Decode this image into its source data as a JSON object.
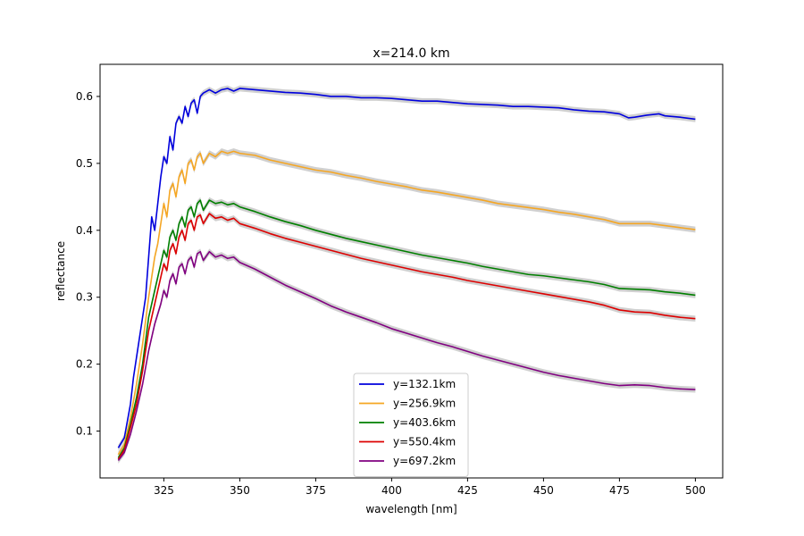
{
  "chart_data": {
    "type": "line",
    "title": "x=214.0 km",
    "xlabel": "wavelength [nm]",
    "ylabel": "reflectance",
    "xlim": [
      304,
      509
    ],
    "ylim": [
      0.03,
      0.648
    ],
    "xticks": [
      325,
      350,
      375,
      400,
      425,
      450,
      475,
      500
    ],
    "yticks": [
      0.1,
      0.2,
      0.3,
      0.4,
      0.5,
      0.6
    ],
    "legend_position": "lower-center",
    "grid": false,
    "uncertainty_band_color": "#c8c8c8",
    "series": [
      {
        "name": "y=132.1km",
        "color": "#0000dd",
        "points": [
          [
            310,
            0.075
          ],
          [
            312,
            0.09
          ],
          [
            314,
            0.14
          ],
          [
            315,
            0.18
          ],
          [
            316,
            0.21
          ],
          [
            318,
            0.27
          ],
          [
            319,
            0.3
          ],
          [
            320,
            0.36
          ],
          [
            321,
            0.42
          ],
          [
            322,
            0.4
          ],
          [
            323,
            0.44
          ],
          [
            324,
            0.48
          ],
          [
            325,
            0.51
          ],
          [
            326,
            0.5
          ],
          [
            327,
            0.54
          ],
          [
            328,
            0.52
          ],
          [
            329,
            0.56
          ],
          [
            330,
            0.57
          ],
          [
            331,
            0.56
          ],
          [
            332,
            0.585
          ],
          [
            333,
            0.57
          ],
          [
            334,
            0.59
          ],
          [
            335,
            0.595
          ],
          [
            336,
            0.575
          ],
          [
            337,
            0.6
          ],
          [
            338,
            0.605
          ],
          [
            340,
            0.61
          ],
          [
            342,
            0.605
          ],
          [
            344,
            0.61
          ],
          [
            346,
            0.612
          ],
          [
            348,
            0.608
          ],
          [
            350,
            0.612
          ],
          [
            355,
            0.61
          ],
          [
            360,
            0.608
          ],
          [
            365,
            0.606
          ],
          [
            370,
            0.605
          ],
          [
            375,
            0.603
          ],
          [
            380,
            0.6
          ],
          [
            385,
            0.6
          ],
          [
            390,
            0.598
          ],
          [
            395,
            0.598
          ],
          [
            400,
            0.597
          ],
          [
            405,
            0.595
          ],
          [
            410,
            0.593
          ],
          [
            415,
            0.593
          ],
          [
            420,
            0.591
          ],
          [
            425,
            0.589
          ],
          [
            430,
            0.588
          ],
          [
            435,
            0.587
          ],
          [
            440,
            0.585
          ],
          [
            445,
            0.585
          ],
          [
            450,
            0.584
          ],
          [
            455,
            0.583
          ],
          [
            460,
            0.58
          ],
          [
            465,
            0.578
          ],
          [
            470,
            0.577
          ],
          [
            475,
            0.574
          ],
          [
            478,
            0.568
          ],
          [
            480,
            0.569
          ],
          [
            484,
            0.572
          ],
          [
            488,
            0.574
          ],
          [
            490,
            0.571
          ],
          [
            495,
            0.569
          ],
          [
            500,
            0.566
          ]
        ]
      },
      {
        "name": "y=256.9km",
        "color": "#f5a623",
        "points": [
          [
            310,
            0.065
          ],
          [
            312,
            0.08
          ],
          [
            314,
            0.12
          ],
          [
            316,
            0.17
          ],
          [
            318,
            0.23
          ],
          [
            320,
            0.3
          ],
          [
            321,
            0.33
          ],
          [
            322,
            0.36
          ],
          [
            323,
            0.38
          ],
          [
            324,
            0.41
          ],
          [
            325,
            0.44
          ],
          [
            326,
            0.42
          ],
          [
            327,
            0.46
          ],
          [
            328,
            0.47
          ],
          [
            329,
            0.45
          ],
          [
            330,
            0.48
          ],
          [
            331,
            0.49
          ],
          [
            332,
            0.47
          ],
          [
            333,
            0.5
          ],
          [
            334,
            0.505
          ],
          [
            335,
            0.49
          ],
          [
            336,
            0.51
          ],
          [
            337,
            0.515
          ],
          [
            338,
            0.5
          ],
          [
            340,
            0.515
          ],
          [
            342,
            0.51
          ],
          [
            344,
            0.518
          ],
          [
            346,
            0.515
          ],
          [
            348,
            0.518
          ],
          [
            350,
            0.515
          ],
          [
            355,
            0.512
          ],
          [
            360,
            0.505
          ],
          [
            365,
            0.5
          ],
          [
            370,
            0.495
          ],
          [
            375,
            0.49
          ],
          [
            380,
            0.487
          ],
          [
            385,
            0.482
          ],
          [
            390,
            0.478
          ],
          [
            395,
            0.473
          ],
          [
            400,
            0.469
          ],
          [
            405,
            0.465
          ],
          [
            410,
            0.46
          ],
          [
            415,
            0.457
          ],
          [
            420,
            0.453
          ],
          [
            425,
            0.449
          ],
          [
            430,
            0.445
          ],
          [
            435,
            0.44
          ],
          [
            440,
            0.437
          ],
          [
            445,
            0.434
          ],
          [
            450,
            0.431
          ],
          [
            455,
            0.427
          ],
          [
            460,
            0.424
          ],
          [
            465,
            0.42
          ],
          [
            470,
            0.416
          ],
          [
            475,
            0.41
          ],
          [
            480,
            0.41
          ],
          [
            485,
            0.41
          ],
          [
            490,
            0.407
          ],
          [
            495,
            0.404
          ],
          [
            500,
            0.401
          ]
        ]
      },
      {
        "name": "y=403.6km",
        "color": "#007f00",
        "points": [
          [
            310,
            0.06
          ],
          [
            312,
            0.075
          ],
          [
            314,
            0.11
          ],
          [
            316,
            0.15
          ],
          [
            318,
            0.2
          ],
          [
            320,
            0.27
          ],
          [
            321,
            0.29
          ],
          [
            322,
            0.31
          ],
          [
            323,
            0.33
          ],
          [
            324,
            0.35
          ],
          [
            325,
            0.37
          ],
          [
            326,
            0.36
          ],
          [
            327,
            0.39
          ],
          [
            328,
            0.4
          ],
          [
            329,
            0.385
          ],
          [
            330,
            0.41
          ],
          [
            331,
            0.42
          ],
          [
            332,
            0.405
          ],
          [
            333,
            0.43
          ],
          [
            334,
            0.435
          ],
          [
            335,
            0.42
          ],
          [
            336,
            0.44
          ],
          [
            337,
            0.445
          ],
          [
            338,
            0.43
          ],
          [
            340,
            0.445
          ],
          [
            342,
            0.44
          ],
          [
            344,
            0.442
          ],
          [
            346,
            0.438
          ],
          [
            348,
            0.44
          ],
          [
            350,
            0.435
          ],
          [
            355,
            0.428
          ],
          [
            360,
            0.42
          ],
          [
            365,
            0.413
          ],
          [
            370,
            0.407
          ],
          [
            375,
            0.4
          ],
          [
            380,
            0.394
          ],
          [
            385,
            0.388
          ],
          [
            390,
            0.383
          ],
          [
            395,
            0.378
          ],
          [
            400,
            0.373
          ],
          [
            405,
            0.368
          ],
          [
            410,
            0.363
          ],
          [
            415,
            0.359
          ],
          [
            420,
            0.355
          ],
          [
            425,
            0.351
          ],
          [
            430,
            0.346
          ],
          [
            435,
            0.342
          ],
          [
            440,
            0.338
          ],
          [
            445,
            0.334
          ],
          [
            450,
            0.332
          ],
          [
            455,
            0.329
          ],
          [
            460,
            0.326
          ],
          [
            465,
            0.323
          ],
          [
            470,
            0.319
          ],
          [
            475,
            0.313
          ],
          [
            480,
            0.312
          ],
          [
            485,
            0.311
          ],
          [
            490,
            0.308
          ],
          [
            495,
            0.306
          ],
          [
            500,
            0.303
          ]
        ]
      },
      {
        "name": "y=550.4km",
        "color": "#dd0000",
        "points": [
          [
            310,
            0.058
          ],
          [
            312,
            0.072
          ],
          [
            314,
            0.105
          ],
          [
            316,
            0.14
          ],
          [
            318,
            0.19
          ],
          [
            320,
            0.25
          ],
          [
            321,
            0.27
          ],
          [
            322,
            0.29
          ],
          [
            323,
            0.31
          ],
          [
            324,
            0.33
          ],
          [
            325,
            0.35
          ],
          [
            326,
            0.34
          ],
          [
            327,
            0.37
          ],
          [
            328,
            0.38
          ],
          [
            329,
            0.365
          ],
          [
            330,
            0.39
          ],
          [
            331,
            0.4
          ],
          [
            332,
            0.385
          ],
          [
            333,
            0.41
          ],
          [
            334,
            0.415
          ],
          [
            335,
            0.4
          ],
          [
            336,
            0.42
          ],
          [
            337,
            0.423
          ],
          [
            338,
            0.41
          ],
          [
            340,
            0.425
          ],
          [
            342,
            0.418
          ],
          [
            344,
            0.42
          ],
          [
            346,
            0.415
          ],
          [
            348,
            0.418
          ],
          [
            350,
            0.41
          ],
          [
            355,
            0.403
          ],
          [
            360,
            0.395
          ],
          [
            365,
            0.388
          ],
          [
            370,
            0.382
          ],
          [
            375,
            0.376
          ],
          [
            380,
            0.37
          ],
          [
            385,
            0.364
          ],
          [
            390,
            0.358
          ],
          [
            395,
            0.353
          ],
          [
            400,
            0.348
          ],
          [
            405,
            0.343
          ],
          [
            410,
            0.338
          ],
          [
            415,
            0.334
          ],
          [
            420,
            0.33
          ],
          [
            425,
            0.325
          ],
          [
            430,
            0.321
          ],
          [
            435,
            0.317
          ],
          [
            440,
            0.313
          ],
          [
            445,
            0.309
          ],
          [
            450,
            0.305
          ],
          [
            455,
            0.301
          ],
          [
            460,
            0.297
          ],
          [
            465,
            0.293
          ],
          [
            470,
            0.288
          ],
          [
            475,
            0.281
          ],
          [
            480,
            0.278
          ],
          [
            485,
            0.277
          ],
          [
            490,
            0.273
          ],
          [
            495,
            0.27
          ],
          [
            500,
            0.268
          ]
        ]
      },
      {
        "name": "y=697.2km",
        "color": "#800080",
        "points": [
          [
            310,
            0.056
          ],
          [
            312,
            0.068
          ],
          [
            314,
            0.095
          ],
          [
            316,
            0.13
          ],
          [
            318,
            0.17
          ],
          [
            320,
            0.22
          ],
          [
            321,
            0.24
          ],
          [
            322,
            0.26
          ],
          [
            323,
            0.275
          ],
          [
            324,
            0.29
          ],
          [
            325,
            0.31
          ],
          [
            326,
            0.3
          ],
          [
            327,
            0.325
          ],
          [
            328,
            0.335
          ],
          [
            329,
            0.32
          ],
          [
            330,
            0.345
          ],
          [
            331,
            0.35
          ],
          [
            332,
            0.335
          ],
          [
            333,
            0.355
          ],
          [
            334,
            0.36
          ],
          [
            335,
            0.345
          ],
          [
            336,
            0.365
          ],
          [
            337,
            0.368
          ],
          [
            338,
            0.355
          ],
          [
            340,
            0.368
          ],
          [
            342,
            0.36
          ],
          [
            344,
            0.363
          ],
          [
            346,
            0.358
          ],
          [
            348,
            0.36
          ],
          [
            350,
            0.352
          ],
          [
            355,
            0.342
          ],
          [
            360,
            0.33
          ],
          [
            365,
            0.318
          ],
          [
            370,
            0.308
          ],
          [
            375,
            0.298
          ],
          [
            380,
            0.287
          ],
          [
            385,
            0.278
          ],
          [
            390,
            0.27
          ],
          [
            395,
            0.262
          ],
          [
            400,
            0.253
          ],
          [
            405,
            0.246
          ],
          [
            410,
            0.239
          ],
          [
            415,
            0.232
          ],
          [
            420,
            0.226
          ],
          [
            425,
            0.219
          ],
          [
            430,
            0.212
          ],
          [
            435,
            0.206
          ],
          [
            440,
            0.2
          ],
          [
            445,
            0.194
          ],
          [
            450,
            0.188
          ],
          [
            455,
            0.183
          ],
          [
            460,
            0.179
          ],
          [
            465,
            0.175
          ],
          [
            470,
            0.171
          ],
          [
            475,
            0.168
          ],
          [
            480,
            0.169
          ],
          [
            485,
            0.168
          ],
          [
            490,
            0.165
          ],
          [
            495,
            0.163
          ],
          [
            500,
            0.162
          ]
        ]
      }
    ]
  }
}
